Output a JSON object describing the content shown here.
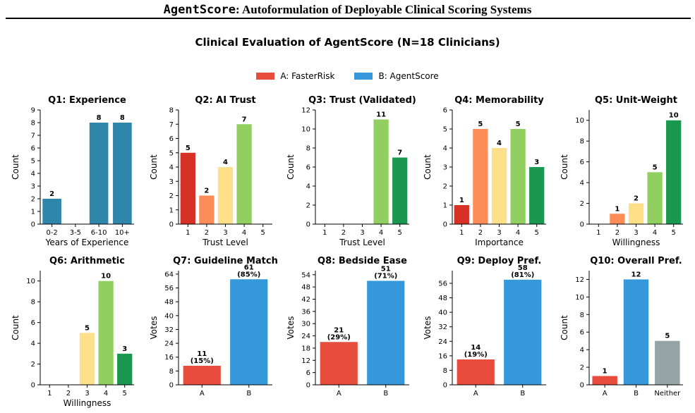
{
  "header": {
    "title_mono": "AgentScore",
    "title_rest": ": Autoformulation of Deployable Clinical Scoring Systems"
  },
  "figure": {
    "title": "Clinical Evaluation of AgentScore (N=18 Clinicians)"
  },
  "legend": [
    {
      "label": "A: FasterRisk",
      "color": "#e74c3c"
    },
    {
      "label": "B: AgentScore",
      "color": "#3498db"
    }
  ],
  "chart_data": [
    {
      "id": "q1",
      "type": "bar",
      "title": "Q1: Experience",
      "xlabel": "Years of Experience",
      "ylabel": "Count",
      "categories": [
        "0-2",
        "3-5",
        "6-10",
        "10+"
      ],
      "values": [
        2,
        0,
        8,
        8
      ],
      "labels": [
        "2",
        "",
        "8",
        "8"
      ],
      "yticks": [
        0,
        1,
        2,
        3,
        4,
        5,
        6,
        7,
        8,
        9
      ],
      "ylim": [
        0,
        9
      ],
      "colors": [
        "#2e86ab",
        "#2e86ab",
        "#2e86ab",
        "#2e86ab"
      ]
    },
    {
      "id": "q2",
      "type": "bar",
      "title": "Q2: AI Trust",
      "xlabel": "Trust Level",
      "ylabel": "Count",
      "categories": [
        "1",
        "2",
        "3",
        "4",
        "5"
      ],
      "values": [
        5,
        2,
        4,
        7,
        0
      ],
      "labels": [
        "5",
        "2",
        "4",
        "7",
        ""
      ],
      "yticks": [
        0,
        1,
        2,
        3,
        4,
        5,
        6,
        7,
        8
      ],
      "ylim": [
        0,
        8
      ],
      "colors": [
        "#d73027",
        "#fc8d59",
        "#fee08b",
        "#91cf60",
        "#1a9850"
      ]
    },
    {
      "id": "q3",
      "type": "bar",
      "title": "Q3: Trust (Validated)",
      "xlabel": "Trust Level",
      "ylabel": "Count",
      "categories": [
        "1",
        "2",
        "3",
        "4",
        "5"
      ],
      "values": [
        0,
        0,
        0,
        11,
        7
      ],
      "labels": [
        "",
        "",
        "",
        "11",
        "7"
      ],
      "yticks": [
        0,
        2,
        4,
        6,
        8,
        10,
        12
      ],
      "ylim": [
        0,
        12
      ],
      "colors": [
        "#d73027",
        "#fc8d59",
        "#fee08b",
        "#91cf60",
        "#1a9850"
      ]
    },
    {
      "id": "q4",
      "type": "bar",
      "title": "Q4: Memorability",
      "xlabel": "Importance",
      "ylabel": "Count",
      "categories": [
        "1",
        "2",
        "3",
        "4",
        "5"
      ],
      "values": [
        1,
        5,
        4,
        5,
        3
      ],
      "labels": [
        "1",
        "5",
        "4",
        "5",
        "3"
      ],
      "yticks": [
        0,
        1,
        2,
        3,
        4,
        5,
        6
      ],
      "ylim": [
        0,
        6
      ],
      "colors": [
        "#d73027",
        "#fc8d59",
        "#fee08b",
        "#91cf60",
        "#1a9850"
      ]
    },
    {
      "id": "q5",
      "type": "bar",
      "title": "Q5: Unit-Weight",
      "xlabel": "Willingness",
      "ylabel": "Count",
      "categories": [
        "1",
        "2",
        "3",
        "4",
        "5"
      ],
      "values": [
        0,
        1,
        2,
        5,
        10
      ],
      "labels": [
        "",
        "1",
        "2",
        "5",
        "10"
      ],
      "yticks": [
        0,
        2,
        4,
        6,
        8,
        10
      ],
      "ylim": [
        0,
        11
      ],
      "colors": [
        "#d73027",
        "#fc8d59",
        "#fee08b",
        "#91cf60",
        "#1a9850"
      ]
    },
    {
      "id": "q6",
      "type": "bar",
      "title": "Q6: Arithmetic",
      "xlabel": "Willingness",
      "ylabel": "Count",
      "categories": [
        "1",
        "2",
        "3",
        "4",
        "5"
      ],
      "values": [
        0,
        0,
        5,
        10,
        3
      ],
      "labels": [
        "",
        "",
        "5",
        "10",
        "3"
      ],
      "yticks": [
        0,
        2,
        4,
        6,
        8,
        10
      ],
      "ylim": [
        0,
        11
      ],
      "colors": [
        "#d73027",
        "#fc8d59",
        "#fee08b",
        "#91cf60",
        "#1a9850"
      ]
    },
    {
      "id": "q7",
      "type": "bar",
      "title": "Q7: Guideline Match",
      "xlabel": "",
      "ylabel": "Votes",
      "categories": [
        "A",
        "B"
      ],
      "values": [
        11,
        61
      ],
      "labels": [
        "11\n(15%)",
        "61\n(85%)"
      ],
      "yticks": [
        0,
        8,
        16,
        24,
        32,
        40,
        48,
        56,
        64
      ],
      "ylim": [
        0,
        66
      ],
      "colors": [
        "#e74c3c",
        "#3498db"
      ]
    },
    {
      "id": "q8",
      "type": "bar",
      "title": "Q8: Bedside Ease",
      "xlabel": "",
      "ylabel": "Votes",
      "categories": [
        "A",
        "B"
      ],
      "values": [
        21,
        51
      ],
      "labels": [
        "21\n(29%)",
        "51\n(71%)"
      ],
      "yticks": [
        0,
        6,
        12,
        18,
        24,
        30,
        36,
        42,
        48,
        54
      ],
      "ylim": [
        0,
        56
      ],
      "colors": [
        "#e74c3c",
        "#3498db"
      ]
    },
    {
      "id": "q9",
      "type": "bar",
      "title": "Q9: Deploy Pref.",
      "xlabel": "",
      "ylabel": "Votes",
      "categories": [
        "A",
        "B"
      ],
      "values": [
        14,
        58
      ],
      "labels": [
        "14\n(19%)",
        "58\n(81%)"
      ],
      "yticks": [
        0,
        8,
        16,
        24,
        32,
        40,
        48,
        56
      ],
      "ylim": [
        0,
        63
      ],
      "colors": [
        "#e74c3c",
        "#3498db"
      ]
    },
    {
      "id": "q10",
      "type": "bar",
      "title": "Q10: Overall Pref.",
      "xlabel": "",
      "ylabel": "Count",
      "categories": [
        "A",
        "B",
        "Neither"
      ],
      "values": [
        1,
        12,
        5
      ],
      "labels": [
        "1",
        "12",
        "5"
      ],
      "yticks": [
        0,
        2,
        4,
        6,
        8,
        10,
        12
      ],
      "ylim": [
        0,
        13
      ],
      "colors": [
        "#e74c3c",
        "#3498db",
        "#95a5a6"
      ]
    }
  ]
}
